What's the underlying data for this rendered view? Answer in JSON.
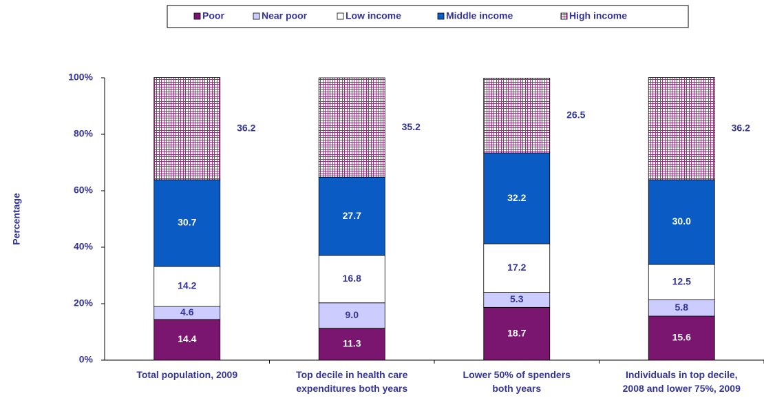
{
  "chart_data": {
    "type": "stacked_bar",
    "y_label": "Percentage",
    "categories": [
      [
        "Total population, 2009"
      ],
      [
        "Top decile in health care",
        "expenditures both years"
      ],
      [
        "Lower 50% of spenders",
        "both years"
      ],
      [
        "Individuals in top decile,",
        "2008 and lower 75%, 2009"
      ]
    ],
    "series": [
      {
        "name": "Poor",
        "color": "#7b1670",
        "label_color": "#ffffff",
        "values": [
          14.4,
          11.3,
          18.7,
          15.6
        ]
      },
      {
        "name": "Near poor",
        "color": "#ccccff",
        "label_color": "#333399",
        "values": [
          4.6,
          9.0,
          5.3,
          5.8
        ],
        "value_labels": [
          "4.6",
          "9.0",
          "5.3",
          "5.8"
        ]
      },
      {
        "name": "Low income",
        "color": "#ffffff",
        "label_color": "#333399",
        "values": [
          14.2,
          16.8,
          17.2,
          12.5
        ]
      },
      {
        "name": "Middle income",
        "color": "#0a5cc4",
        "label_color": "#ffffff",
        "values": [
          30.7,
          27.7,
          32.2,
          30.0
        ],
        "value_labels": [
          "30.7",
          "27.7",
          "32.2",
          "30.0"
        ]
      },
      {
        "name": "High income",
        "color": "#99337f",
        "pattern": "crosshatch",
        "label_color": "#333399",
        "label_outside": true,
        "values": [
          36.2,
          35.2,
          26.5,
          36.2
        ]
      }
    ],
    "ylim": [
      0,
      100
    ],
    "yticks": [
      {
        "value": 0,
        "label": "0%"
      },
      {
        "value": 20,
        "label": "20%"
      },
      {
        "value": 40,
        "label": "40%"
      },
      {
        "value": 60,
        "label": "60%"
      },
      {
        "value": 80,
        "label": "80%"
      },
      {
        "value": 100,
        "label": "100%"
      }
    ],
    "legend": "top"
  }
}
